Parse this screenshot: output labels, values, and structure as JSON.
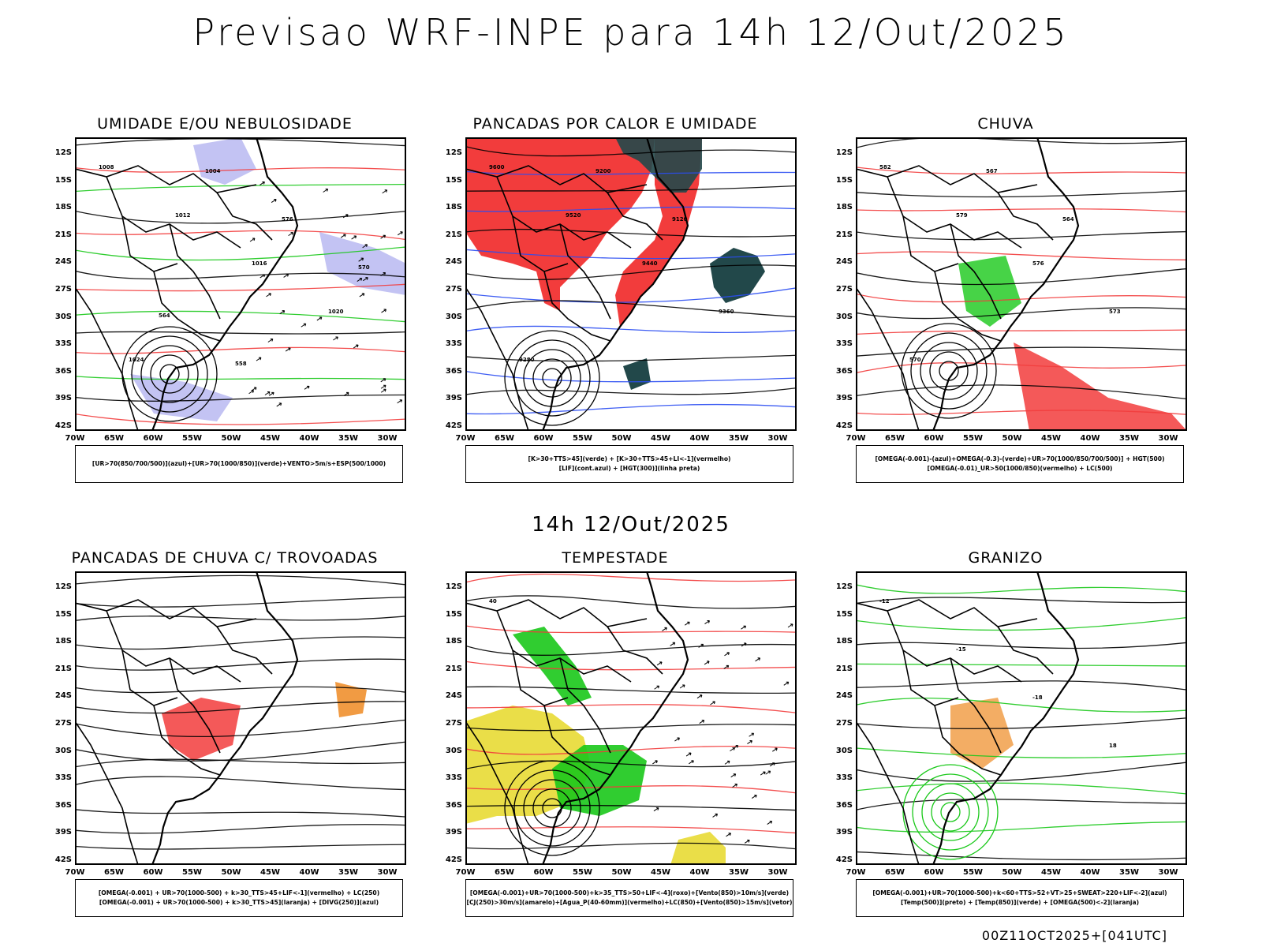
{
  "header": {
    "title": "Previsao WRF-INPE  para 14h 12/Out/2025"
  },
  "mid_title": "14h 12/Out/2025",
  "footer": "00Z11OCT2025+[041UTC]",
  "axes": {
    "lat_labels": [
      "12S",
      "15S",
      "18S",
      "21S",
      "24S",
      "27S",
      "30S",
      "33S",
      "36S",
      "39S",
      "42S"
    ],
    "lon_labels": [
      "70W",
      "65W",
      "60W",
      "55W",
      "50W",
      "45W",
      "40W",
      "35W",
      "30W"
    ]
  },
  "panels": [
    {
      "title": "UMIDADE E/OU NEBULOSIDADE",
      "legend": [
        "[UR>70(850/700/500)](azul)+[UR>70(1000/850)](verde)+VENTO>5m/s+ESP(500/1000)"
      ],
      "contour_labels": [
        "1008",
        "1012",
        "1016",
        "1020",
        "1024",
        "1004",
        "576",
        "570",
        "564",
        "558"
      ]
    },
    {
      "title": "PANCADAS POR CALOR E UMIDADE",
      "legend": [
        "[K>30+TTS>45](verde) + [K>30+TTS>45+LI<-1](vermelho)",
        "[LIF](cont.azul) + [HGT(300)](linha preta)"
      ],
      "contour_labels": [
        "9600",
        "9520",
        "9440",
        "9360",
        "9280",
        "9200",
        "9120"
      ]
    },
    {
      "title": "CHUVA",
      "legend": [
        "[OMEGA(-0.001)-(azul)+OMEGA(-0.3)-(verde)+UR>70(1000/850/700/500)] + HGT(500)",
        "[OMEGA(-0.01)_UR>50(1000/850)(vermelho) + LC(500)"
      ],
      "contour_labels": [
        "582",
        "579",
        "576",
        "573",
        "570",
        "567",
        "564"
      ]
    },
    {
      "title": "PANCADAS DE CHUVA C/ TROVOADAS",
      "legend": [
        "[OMEGA(-0.001) + UR>70(1000-500) + k>30_TTS>45+LIF<-1](vermelho) + LC(250)",
        "[OMEGA(-0.001) + UR>70(1000-500) + k>30_TTS>45](laranja) + [DIVG(250)](azul)"
      ],
      "contour_labels": []
    },
    {
      "title": "TEMPESTADE",
      "legend": [
        "[OMEGA(-0.001)+UR>70(1000-500)+k>35_TTS>50+LIF<-4](roxo)+[Vento(850)>10m/s](verde)",
        "[CJ(250)>30m/s](amarelo)+[Agua_P(40-60mm)](vermelho)+LC(850)+[Vento(850)>15m/s](vetor)"
      ],
      "contour_labels": [
        "40"
      ]
    },
    {
      "title": "GRANIZO",
      "legend": [
        "[OMEGA(-0.001)+UR>70(1000-500)+k<60+TTS>52+VT>25+SWEAT>220+LIF<-2](azul)",
        "[Temp(500)](preto) + [Temp(850)](verde) + [OMEGA(500)<-2](laranja)"
      ],
      "contour_labels": [
        "-12",
        "-15",
        "-18",
        "18"
      ]
    }
  ],
  "colors": {
    "green": "#19c819",
    "red": "#f23c3c",
    "blue": "#2a4cf2",
    "lavender": "#b4b4f0",
    "orange": "#ee8a22",
    "yellow": "#e6d828",
    "dark": "#22484a"
  }
}
